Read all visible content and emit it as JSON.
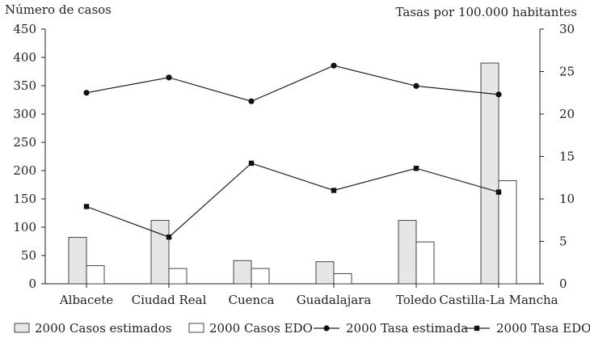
{
  "chart_data": {
    "type": "bar",
    "categories": [
      "Albacete",
      "Ciudad Real",
      "Cuenca",
      "Guadalajara",
      "Toledo",
      "Castilla-La Mancha"
    ],
    "y_left": {
      "label": "Número de casos",
      "lim": [
        0,
        450
      ],
      "ticks": [
        0,
        50,
        100,
        150,
        200,
        250,
        300,
        350,
        400,
        450
      ]
    },
    "y_right": {
      "label": "Tasas por 100.000 habitantes",
      "lim": [
        0,
        30
      ],
      "ticks": [
        0,
        5,
        10,
        15,
        20,
        25,
        30
      ]
    },
    "grid": false,
    "legend_position": "bottom",
    "series": [
      {
        "name": "2000 Casos estimados",
        "kind": "bar",
        "axis": "left",
        "fill": "#e6e6e6",
        "values": [
          82,
          112,
          41,
          39,
          112,
          390
        ]
      },
      {
        "name": "2000 Casos EDO",
        "kind": "bar",
        "axis": "left",
        "fill": "#ffffff",
        "values": [
          32,
          27,
          27,
          18,
          74,
          182
        ]
      },
      {
        "name": "2000 Tasa estimada",
        "kind": "line",
        "marker": "circle",
        "axis": "right",
        "values": [
          22.5,
          24.3,
          21.5,
          25.7,
          23.3,
          22.3
        ]
      },
      {
        "name": "2000 Tasa EDO",
        "kind": "line",
        "marker": "square",
        "axis": "right",
        "values": [
          9.1,
          5.5,
          14.2,
          11.0,
          13.6,
          10.8
        ]
      }
    ]
  }
}
